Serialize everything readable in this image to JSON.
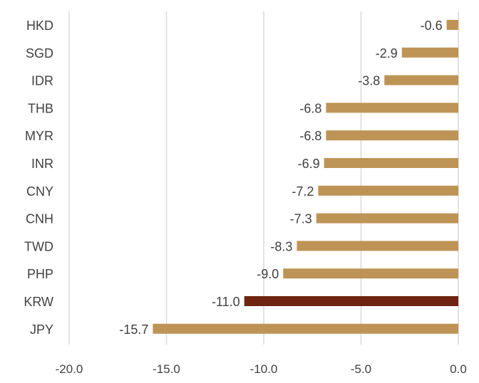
{
  "colors": {
    "bar": "#BE9456",
    "highlight": "#6E2410",
    "grid": "#D9D9D9",
    "text": "#404040"
  },
  "chart_data": {
    "type": "bar",
    "orientation": "horizontal",
    "categories": [
      "HKD",
      "SGD",
      "IDR",
      "THB",
      "MYR",
      "INR",
      "CNY",
      "CNH",
      "TWD",
      "PHP",
      "KRW",
      "JPY"
    ],
    "values": [
      -0.6,
      -2.9,
      -3.8,
      -6.8,
      -6.8,
      -6.9,
      -7.2,
      -7.3,
      -8.3,
      -9.0,
      -11.0,
      -15.7
    ],
    "value_labels": [
      "-0.6",
      "-2.9",
      "-3.8",
      "-6.8",
      "-6.8",
      "-6.9",
      "-7.2",
      "-7.3",
      "-8.3",
      "-9.0",
      "-11.0",
      "-15.7"
    ],
    "highlight_category": "KRW",
    "xlim": [
      -20.0,
      0.0
    ],
    "x_ticks": [
      -20.0,
      -15.0,
      -10.0,
      -5.0,
      0.0
    ],
    "x_tick_labels": [
      "-20.0",
      "-15.0",
      "-10.0",
      "-5.0",
      "0.0"
    ],
    "grid": "vertical",
    "legend": "none",
    "title": "",
    "xlabel": "",
    "ylabel": ""
  }
}
